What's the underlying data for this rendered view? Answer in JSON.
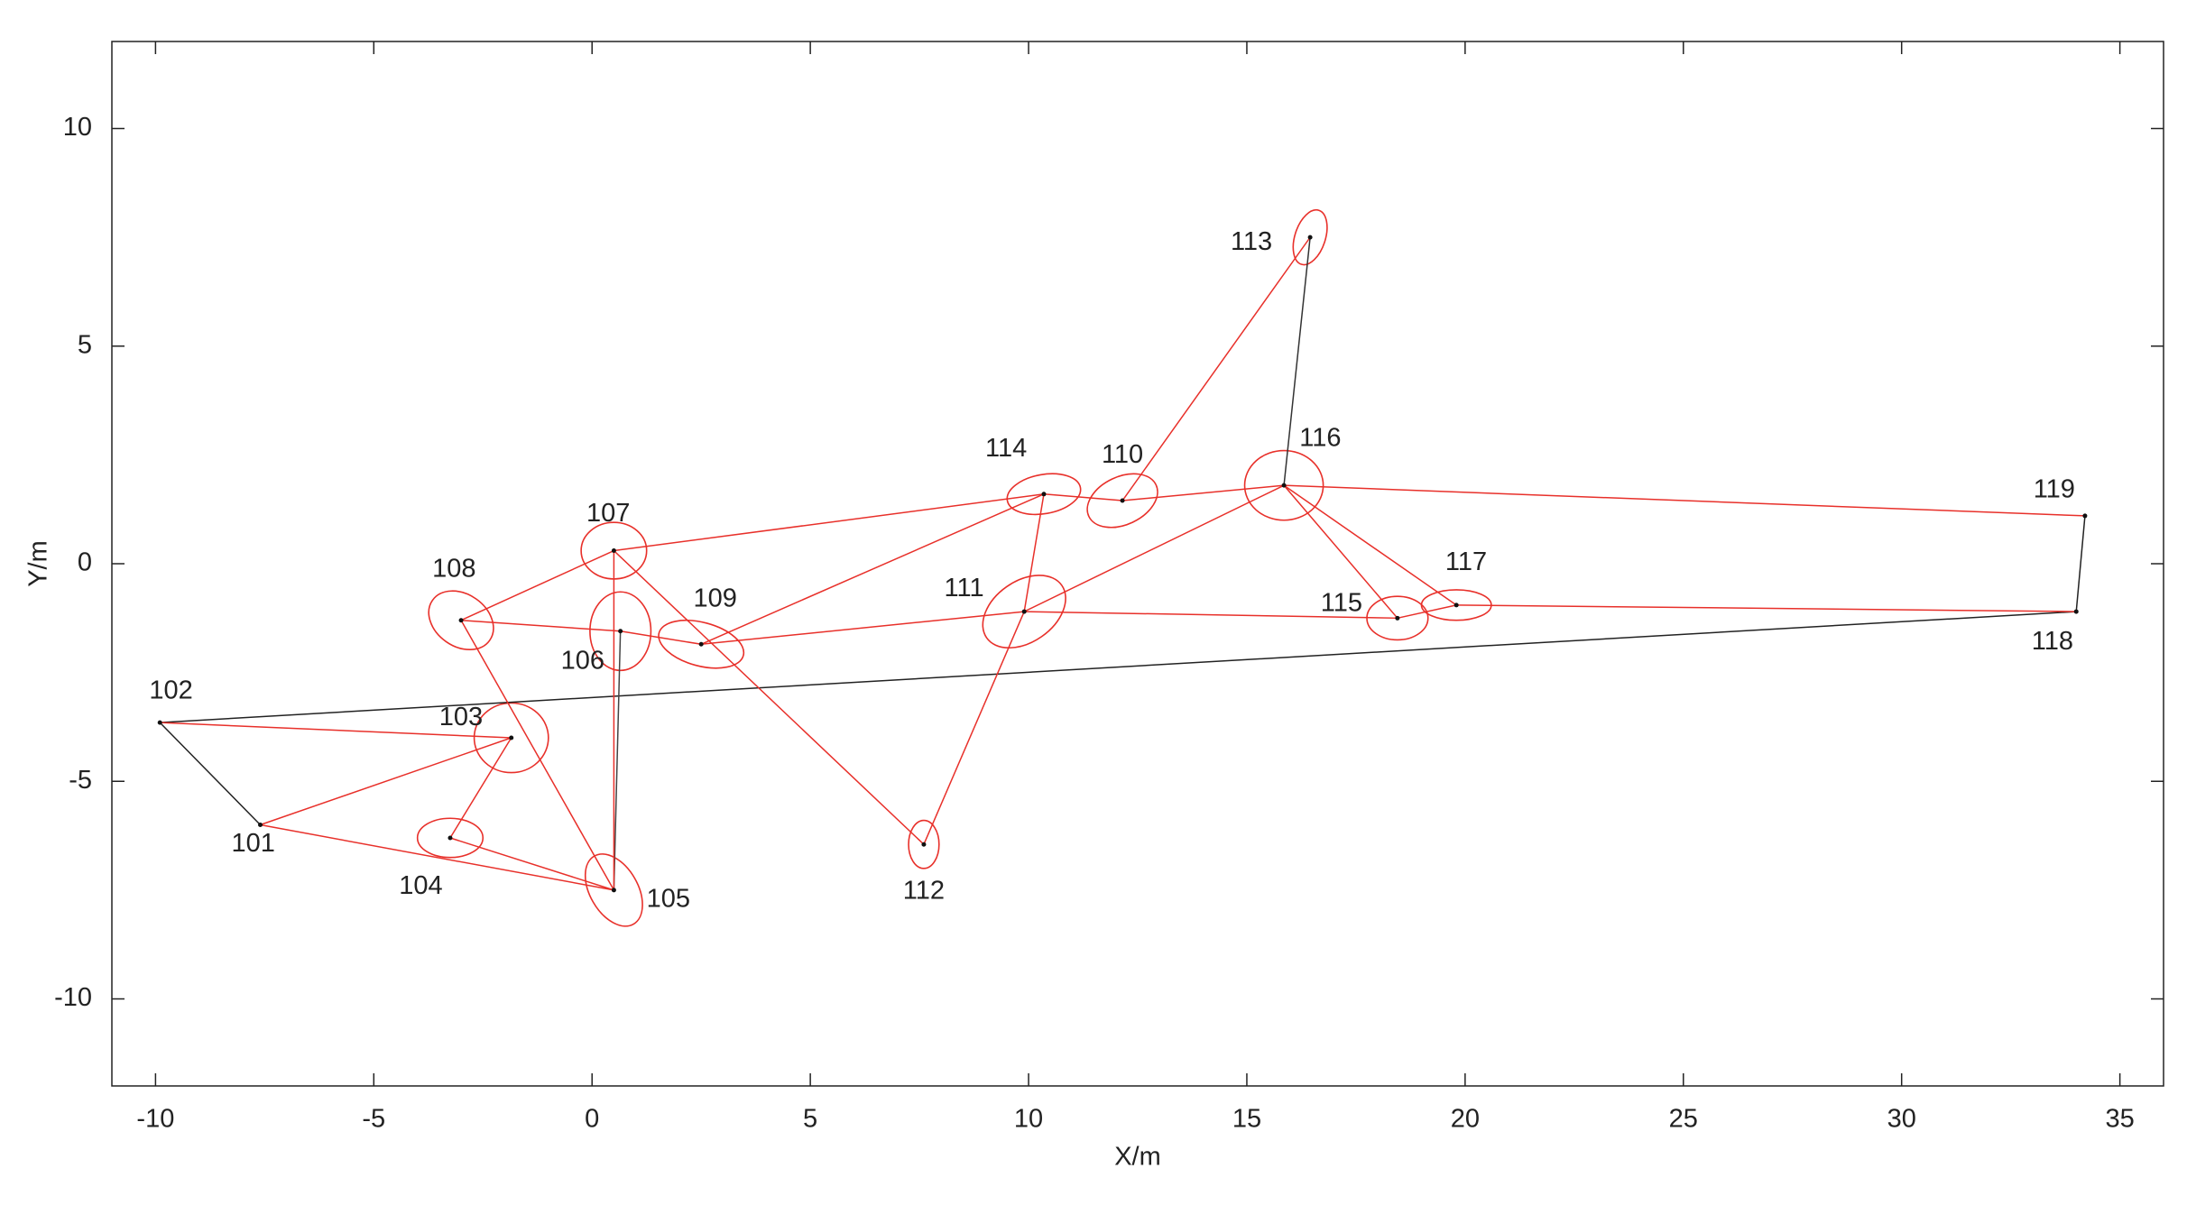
{
  "chart_data": {
    "type": "scatter",
    "xlabel": "X/m",
    "ylabel": "Y/m",
    "xlim": [
      -11,
      36
    ],
    "ylim": [
      -12,
      12
    ],
    "xticks": [
      -10,
      -5,
      0,
      5,
      10,
      15,
      20,
      25,
      30,
      35
    ],
    "yticks": [
      -10,
      -5,
      0,
      5,
      10
    ],
    "labels": [
      "101",
      "102",
      "103",
      "104",
      "105",
      "106",
      "107",
      "108",
      "109",
      "110",
      "111",
      "112",
      "113",
      "114",
      "115",
      "116",
      "117",
      "118",
      "119"
    ],
    "x": [
      -7.6,
      -9.9,
      -1.85,
      -3.25,
      0.5,
      0.65,
      0.5,
      -3.0,
      2.5,
      12.15,
      9.9,
      7.6,
      16.45,
      10.35,
      18.45,
      15.85,
      19.8,
      34.0,
      34.2
    ],
    "y": [
      -6.0,
      -3.65,
      -4.0,
      -6.3,
      -7.5,
      -1.55,
      0.3,
      -1.3,
      -1.85,
      1.45,
      -1.1,
      -6.45,
      7.5,
      1.6,
      -1.25,
      1.8,
      -0.95,
      -1.1,
      1.1
    ],
    "ellipse_a": [
      null,
      null,
      0.85,
      0.75,
      0.9,
      0.9,
      0.75,
      0.8,
      1.0,
      0.85,
      1.05,
      0.55,
      0.65,
      0.85,
      0.7,
      0.9,
      0.8,
      null,
      null
    ],
    "ellipse_b": [
      null,
      null,
      0.8,
      0.45,
      0.55,
      0.7,
      0.65,
      0.6,
      0.5,
      0.55,
      0.7,
      0.35,
      0.35,
      0.45,
      0.5,
      0.8,
      0.35,
      null,
      null
    ],
    "ellipse_angle": [
      null,
      null,
      0,
      0,
      -60,
      90,
      0,
      -35,
      -15,
      25,
      35,
      90,
      72,
      10,
      0,
      0,
      0,
      null,
      null
    ],
    "ellipse_color": "#e8302a",
    "edges": [
      {
        "from": 1,
        "to": 0,
        "color": "#222222"
      },
      {
        "from": 1,
        "to": 17,
        "color": "#222222"
      },
      {
        "from": 17,
        "to": 18,
        "color": "#222222"
      },
      {
        "from": 15,
        "to": 12,
        "color": "#333333"
      },
      {
        "from": 5,
        "to": 4,
        "color": "#444444"
      },
      {
        "from": 1,
        "to": 2,
        "color": "#e8302a"
      },
      {
        "from": 0,
        "to": 2,
        "color": "#e8302a"
      },
      {
        "from": 0,
        "to": 4,
        "color": "#e8302a"
      },
      {
        "from": 3,
        "to": 2,
        "color": "#e8302a"
      },
      {
        "from": 3,
        "to": 4,
        "color": "#e8302a"
      },
      {
        "from": 7,
        "to": 4,
        "color": "#e8302a"
      },
      {
        "from": 6,
        "to": 4,
        "color": "#e8302a"
      },
      {
        "from": 7,
        "to": 6,
        "color": "#e8302a"
      },
      {
        "from": 7,
        "to": 5,
        "color": "#e8302a"
      },
      {
        "from": 5,
        "to": 8,
        "color": "#e8302a"
      },
      {
        "from": 6,
        "to": 13,
        "color": "#e8302a"
      },
      {
        "from": 6,
        "to": 11,
        "color": "#e8302a"
      },
      {
        "from": 8,
        "to": 13,
        "color": "#e8302a"
      },
      {
        "from": 8,
        "to": 10,
        "color": "#e8302a"
      },
      {
        "from": 10,
        "to": 11,
        "color": "#e8302a"
      },
      {
        "from": 10,
        "to": 13,
        "color": "#e8302a"
      },
      {
        "from": 10,
        "to": 15,
        "color": "#e8302a"
      },
      {
        "from": 10,
        "to": 14,
        "color": "#e8302a"
      },
      {
        "from": 13,
        "to": 9,
        "color": "#e8302a"
      },
      {
        "from": 9,
        "to": 12,
        "color": "#e8302a"
      },
      {
        "from": 9,
        "to": 15,
        "color": "#e8302a"
      },
      {
        "from": 15,
        "to": 14,
        "color": "#e8302a"
      },
      {
        "from": 15,
        "to": 16,
        "color": "#e8302a"
      },
      {
        "from": 15,
        "to": 18,
        "color": "#e8302a"
      },
      {
        "from": 14,
        "to": 16,
        "color": "#e8302a"
      },
      {
        "from": 16,
        "to": 17,
        "color": "#e8302a"
      }
    ]
  }
}
